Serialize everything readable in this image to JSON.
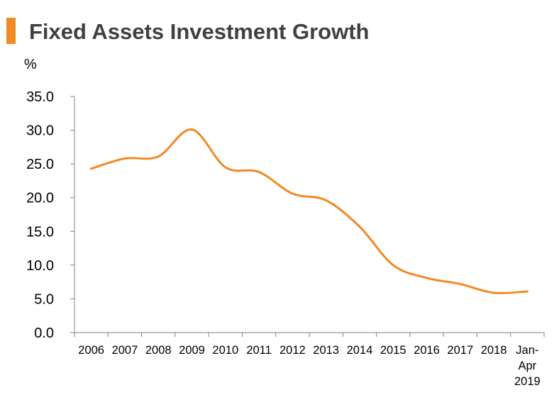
{
  "header": {
    "title": "Fixed Assets Investment Growth",
    "accent_color": "#F08A24"
  },
  "chart_data": {
    "type": "line",
    "title": "Fixed Assets Investment Growth",
    "ylabel": "%",
    "xlabel": "",
    "categories": [
      "2006",
      "2007",
      "2008",
      "2009",
      "2010",
      "2011",
      "2012",
      "2013",
      "2014",
      "2015",
      "2016",
      "2017",
      "2018",
      "Jan-Apr 2019"
    ],
    "category_label_lines": [
      [
        "2006"
      ],
      [
        "2007"
      ],
      [
        "2008"
      ],
      [
        "2009"
      ],
      [
        "2010"
      ],
      [
        "2011"
      ],
      [
        "2012"
      ],
      [
        "2013"
      ],
      [
        "2014"
      ],
      [
        "2015"
      ],
      [
        "2016"
      ],
      [
        "2017"
      ],
      [
        "2018"
      ],
      [
        "Jan-",
        "Apr",
        "2019"
      ]
    ],
    "series": [
      {
        "values": [
          24.3,
          25.8,
          26.1,
          30.1,
          24.5,
          23.8,
          20.6,
          19.6,
          15.7,
          10.0,
          8.1,
          7.2,
          5.9,
          6.1
        ],
        "color": "#F08A24"
      }
    ],
    "ylim": [
      0,
      35
    ],
    "y_ticks": [
      "0.0",
      "5.0",
      "10.0",
      "15.0",
      "20.0",
      "25.0",
      "30.0",
      "35.0"
    ],
    "grid": false,
    "legend": "none",
    "smooth": true
  }
}
